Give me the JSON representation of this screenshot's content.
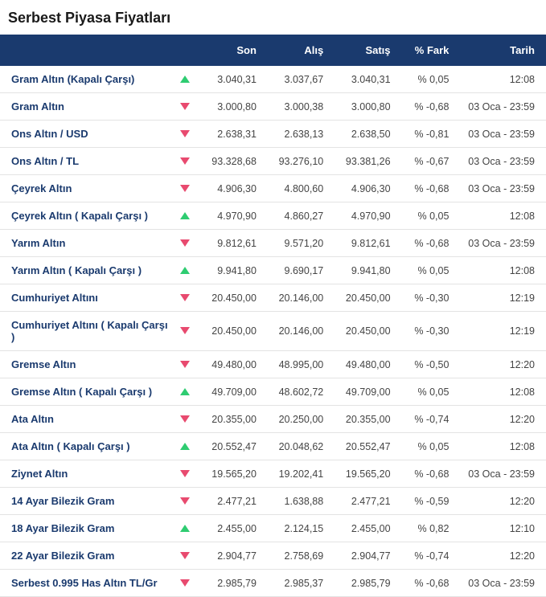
{
  "title": "Serbest Piyasa Fiyatları",
  "headers": {
    "name": "",
    "son": "Son",
    "alis": "Alış",
    "satis": "Satış",
    "fark": "% Fark",
    "tarih": "Tarih"
  },
  "colors": {
    "header_bg": "#1a3a6e",
    "link": "#1a3a6e",
    "up": "#2ecc71",
    "down": "#e84a6f",
    "border": "#e3e3e3"
  },
  "rows": [
    {
      "name": "Gram Altın (Kapalı Çarşı)",
      "dir": "up",
      "son": "3.040,31",
      "alis": "3.037,67",
      "satis": "3.040,31",
      "fark": "% 0,05",
      "tarih": "12:08"
    },
    {
      "name": "Gram Altın",
      "dir": "down",
      "son": "3.000,80",
      "alis": "3.000,38",
      "satis": "3.000,80",
      "fark": "% -0,68",
      "tarih": "03 Oca - 23:59"
    },
    {
      "name": "Ons Altın / USD",
      "dir": "down",
      "son": "2.638,31",
      "alis": "2.638,13",
      "satis": "2.638,50",
      "fark": "% -0,81",
      "tarih": "03 Oca - 23:59"
    },
    {
      "name": "Ons Altın / TL",
      "dir": "down",
      "son": "93.328,68",
      "alis": "93.276,10",
      "satis": "93.381,26",
      "fark": "% -0,67",
      "tarih": "03 Oca - 23:59"
    },
    {
      "name": "Çeyrek Altın",
      "dir": "down",
      "son": "4.906,30",
      "alis": "4.800,60",
      "satis": "4.906,30",
      "fark": "% -0,68",
      "tarih": "03 Oca - 23:59"
    },
    {
      "name": "Çeyrek Altın ( Kapalı Çarşı )",
      "dir": "up",
      "son": "4.970,90",
      "alis": "4.860,27",
      "satis": "4.970,90",
      "fark": "% 0,05",
      "tarih": "12:08"
    },
    {
      "name": "Yarım Altın",
      "dir": "down",
      "son": "9.812,61",
      "alis": "9.571,20",
      "satis": "9.812,61",
      "fark": "% -0,68",
      "tarih": "03 Oca - 23:59"
    },
    {
      "name": "Yarım Altın ( Kapalı Çarşı )",
      "dir": "up",
      "son": "9.941,80",
      "alis": "9.690,17",
      "satis": "9.941,80",
      "fark": "% 0,05",
      "tarih": "12:08"
    },
    {
      "name": "Cumhuriyet Altını",
      "dir": "down",
      "son": "20.450,00",
      "alis": "20.146,00",
      "satis": "20.450,00",
      "fark": "% -0,30",
      "tarih": "12:19"
    },
    {
      "name": "Cumhuriyet Altını ( Kapalı Çarşı )",
      "dir": "down",
      "son": "20.450,00",
      "alis": "20.146,00",
      "satis": "20.450,00",
      "fark": "% -0,30",
      "tarih": "12:19"
    },
    {
      "name": "Gremse Altın",
      "dir": "down",
      "son": "49.480,00",
      "alis": "48.995,00",
      "satis": "49.480,00",
      "fark": "% -0,50",
      "tarih": "12:20"
    },
    {
      "name": "Gremse Altın ( Kapalı Çarşı )",
      "dir": "up",
      "son": "49.709,00",
      "alis": "48.602,72",
      "satis": "49.709,00",
      "fark": "% 0,05",
      "tarih": "12:08"
    },
    {
      "name": "Ata Altın",
      "dir": "down",
      "son": "20.355,00",
      "alis": "20.250,00",
      "satis": "20.355,00",
      "fark": "% -0,74",
      "tarih": "12:20"
    },
    {
      "name": "Ata Altın ( Kapalı Çarşı )",
      "dir": "up",
      "son": "20.552,47",
      "alis": "20.048,62",
      "satis": "20.552,47",
      "fark": "% 0,05",
      "tarih": "12:08"
    },
    {
      "name": "Ziynet Altın",
      "dir": "down",
      "son": "19.565,20",
      "alis": "19.202,41",
      "satis": "19.565,20",
      "fark": "% -0,68",
      "tarih": "03 Oca - 23:59"
    },
    {
      "name": "14 Ayar Bilezik Gram",
      "dir": "down",
      "son": "2.477,21",
      "alis": "1.638,88",
      "satis": "2.477,21",
      "fark": "% -0,59",
      "tarih": "12:20"
    },
    {
      "name": "18 Ayar Bilezik Gram",
      "dir": "up",
      "son": "2.455,00",
      "alis": "2.124,15",
      "satis": "2.455,00",
      "fark": "% 0,82",
      "tarih": "12:10"
    },
    {
      "name": "22 Ayar Bilezik Gram",
      "dir": "down",
      "son": "2.904,77",
      "alis": "2.758,69",
      "satis": "2.904,77",
      "fark": "% -0,74",
      "tarih": "12:20"
    },
    {
      "name": "Serbest 0.995 Has Altın TL/Gr",
      "dir": "down",
      "son": "2.985,79",
      "alis": "2.985,37",
      "satis": "2.985,79",
      "fark": "% -0,68",
      "tarih": "03 Oca - 23:59"
    }
  ]
}
